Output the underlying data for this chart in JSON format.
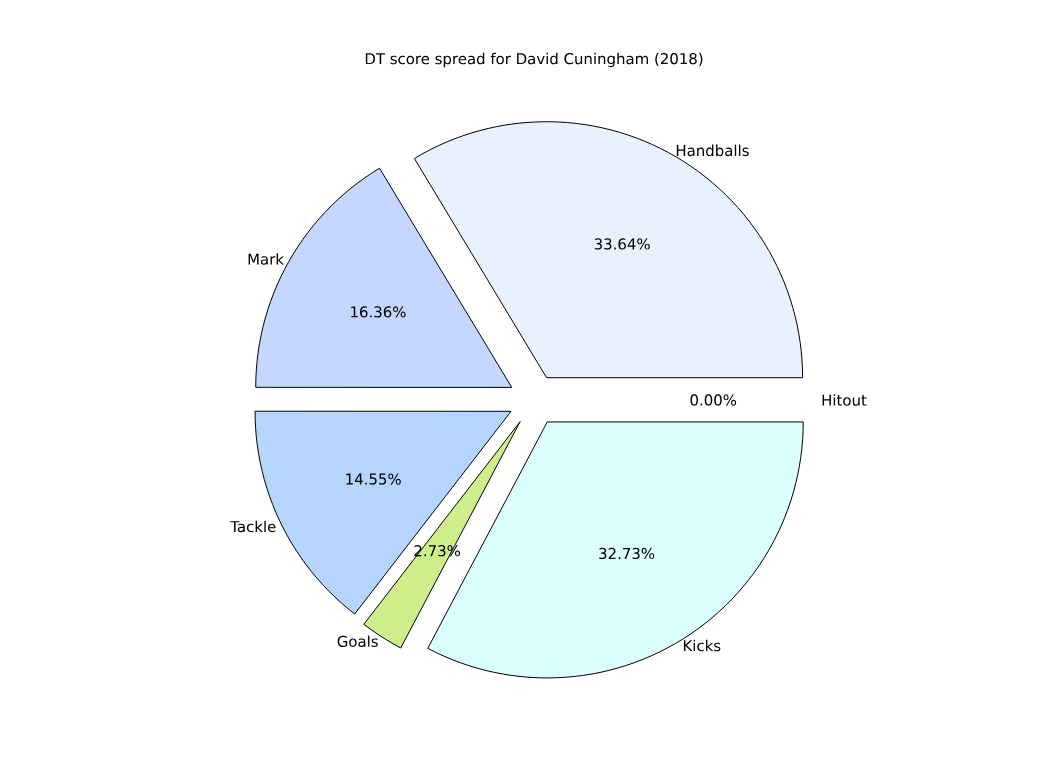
{
  "chart_data": {
    "type": "pie",
    "title": "DT score spread for David Cuningham (2018)",
    "categories": [
      "Handballs",
      "Mark",
      "Tackle",
      "Goals",
      "Kicks",
      "Hitout"
    ],
    "values": [
      33.64,
      16.36,
      14.55,
      2.73,
      32.73,
      0.0
    ],
    "value_labels": [
      "33.64%",
      "16.36%",
      "14.55%",
      "2.73%",
      "32.73%",
      "0.00%"
    ],
    "colors": [
      "#eaf1fe",
      "#c5d6ff",
      "#b5d5ff",
      "#cdee8a",
      "#dafffe",
      "#f0f0ff"
    ]
  }
}
